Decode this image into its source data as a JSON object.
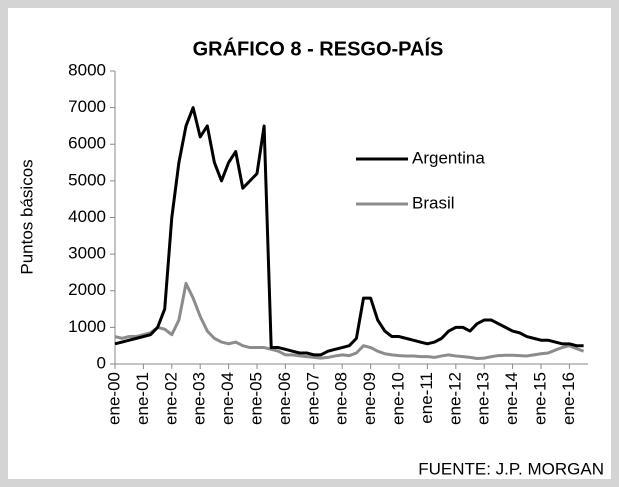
{
  "chart_data": {
    "type": "line",
    "title": "GRÁFICO 8 - RESGO-PAÍS",
    "y_label": "Puntos básicos",
    "source": "FUENTE: J.P. MORGAN",
    "categories": [
      "ene-00",
      null,
      null,
      null,
      "ene-01",
      null,
      null,
      null,
      "ene-02",
      null,
      null,
      null,
      "ene-03",
      null,
      null,
      null,
      "ene-04",
      null,
      null,
      null,
      "ene-05",
      null,
      null,
      null,
      "ene-06",
      null,
      null,
      null,
      "ene-07",
      null,
      null,
      null,
      "ene-08",
      null,
      null,
      null,
      "ene-09",
      null,
      null,
      null,
      "ene-10",
      null,
      null,
      null,
      "ene-11",
      null,
      null,
      null,
      "ene-12",
      null,
      null,
      null,
      "ene-13",
      null,
      null,
      null,
      "ene-14",
      null,
      null,
      null,
      "ene-15",
      null,
      null,
      null,
      "ene-16",
      null,
      null
    ],
    "series": [
      {
        "name": "Argentina",
        "color": "#000000",
        "values": [
          550,
          600,
          650,
          700,
          750,
          800,
          1000,
          1500,
          4000,
          5500,
          6500,
          7000,
          6200,
          6500,
          5500,
          5000,
          5500,
          5800,
          4800,
          5000,
          5200,
          6500,
          450,
          450,
          400,
          350,
          300,
          300,
          250,
          250,
          350,
          400,
          450,
          500,
          700,
          1800,
          1800,
          1200,
          900,
          750,
          750,
          700,
          650,
          600,
          550,
          600,
          700,
          900,
          1000,
          1000,
          900,
          1100,
          1200,
          1200,
          1100,
          1000,
          900,
          850,
          750,
          700,
          650,
          650,
          600,
          550,
          550,
          500,
          500
        ]
      },
      {
        "name": "Brasil",
        "color": "#8c8c8c",
        "values": [
          750,
          700,
          750,
          750,
          800,
          850,
          1000,
          950,
          800,
          1200,
          2200,
          1800,
          1300,
          900,
          700,
          600,
          550,
          600,
          500,
          450,
          450,
          450,
          400,
          350,
          250,
          250,
          220,
          200,
          180,
          160,
          180,
          220,
          250,
          230,
          300,
          500,
          450,
          350,
          280,
          250,
          230,
          220,
          220,
          200,
          200,
          180,
          220,
          250,
          220,
          200,
          180,
          150,
          160,
          200,
          230,
          240,
          240,
          230,
          220,
          250,
          280,
          300,
          380,
          450,
          500,
          420,
          350
        ]
      }
    ],
    "ylim": [
      0,
      8000
    ],
    "yticks": [
      0,
      1000,
      2000,
      3000,
      4000,
      5000,
      6000,
      7000,
      8000
    ],
    "legend": "upper right"
  }
}
